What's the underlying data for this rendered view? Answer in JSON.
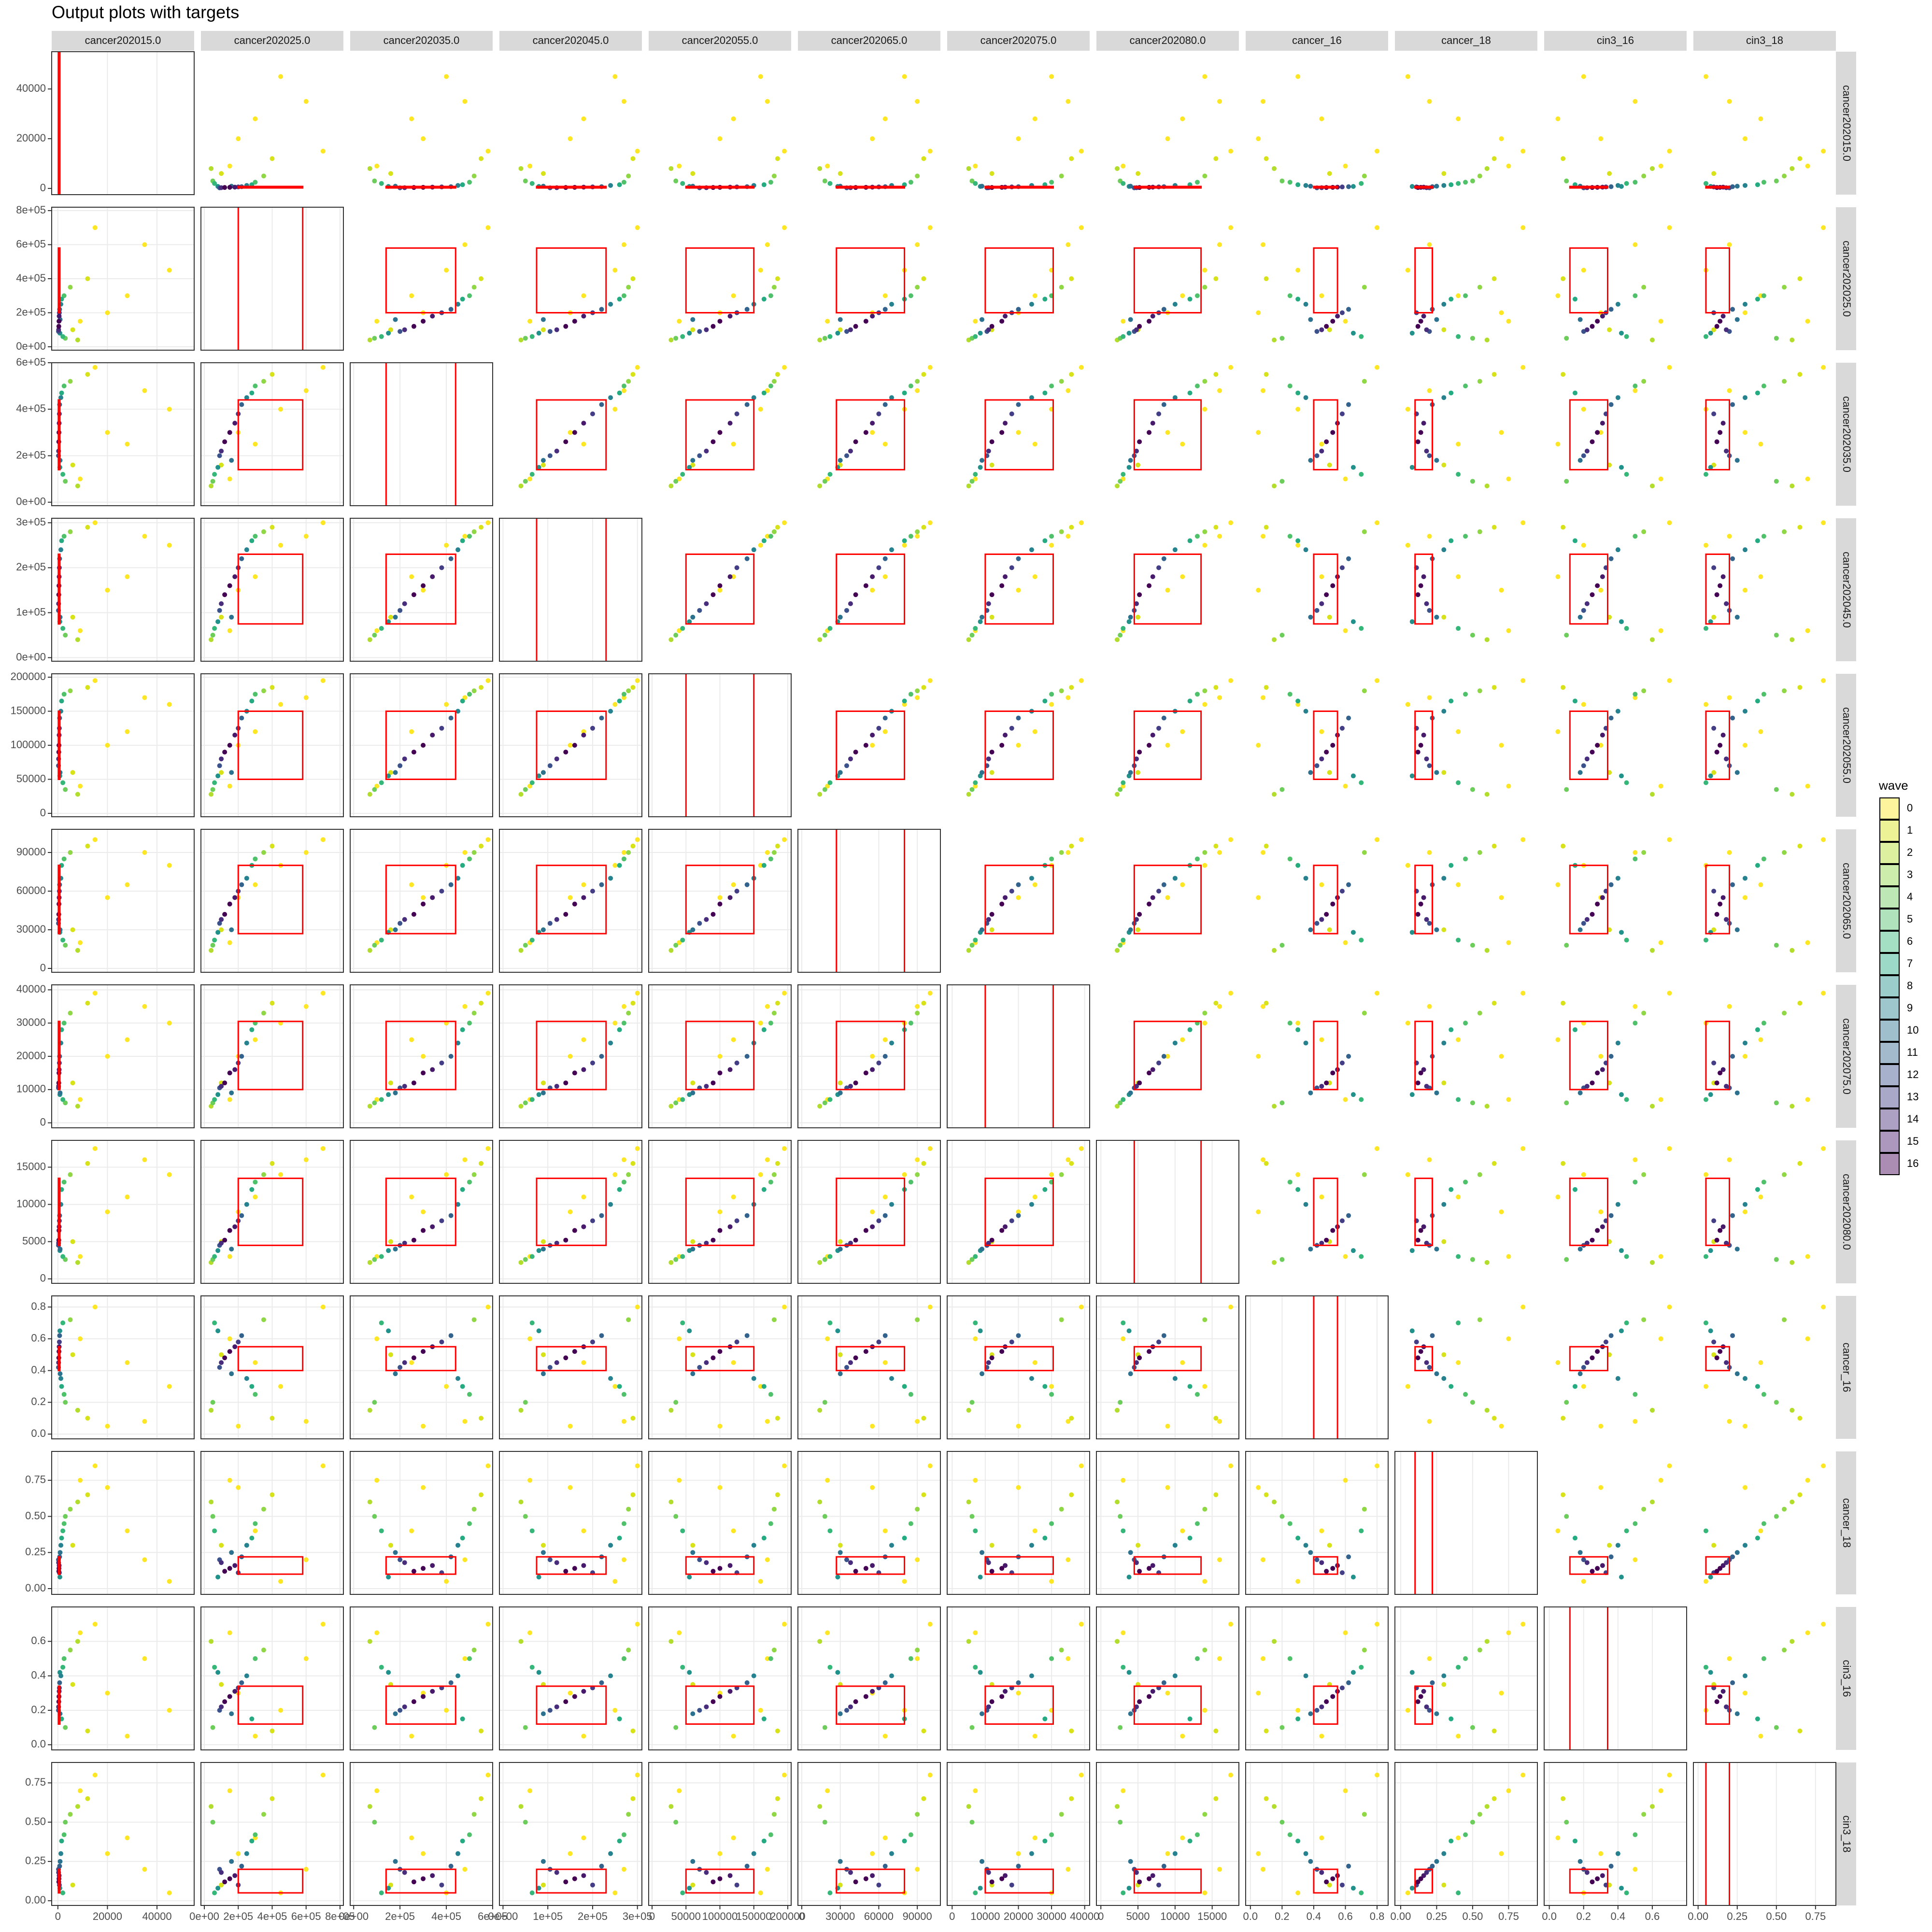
{
  "chart_data": {
    "type": "scatter-matrix",
    "title": "Output plots with targets",
    "variables": [
      {
        "name": "cancer202015.0",
        "lim": [
          -2500,
          55000
        ],
        "ticks": [
          0,
          20000,
          40000
        ],
        "target": [
          200,
          800
        ]
      },
      {
        "name": "cancer202025.0",
        "lim": [
          -20000,
          820000
        ],
        "ticks": [
          {
            "value": 0,
            "label": "0e+00"
          },
          {
            "value": 200000,
            "label": "2e+05"
          },
          {
            "value": 400000,
            "label": "4e+05"
          },
          {
            "value": 600000,
            "label": "6e+05"
          },
          {
            "value": 800000,
            "label": "8e+05"
          }
        ],
        "target": [
          200000,
          580000
        ]
      },
      {
        "name": "cancer202035.0",
        "lim": [
          -15000,
          600000
        ],
        "ticks": [
          {
            "value": 0,
            "label": "0e+00"
          },
          {
            "value": 200000,
            "label": "2e+05"
          },
          {
            "value": 400000,
            "label": "4e+05"
          },
          {
            "value": 600000,
            "label": "6e+05"
          }
        ],
        "target": [
          140000,
          440000
        ]
      },
      {
        "name": "cancer202045.0",
        "lim": [
          -8000,
          310000
        ],
        "ticks": [
          {
            "value": 0,
            "label": "0e+00"
          },
          {
            "value": 100000,
            "label": "1e+05"
          },
          {
            "value": 200000,
            "label": "2e+05"
          },
          {
            "value": 300000,
            "label": "3e+05"
          }
        ],
        "target": [
          75000,
          230000
        ]
      },
      {
        "name": "cancer202055.0",
        "lim": [
          -5000,
          205000
        ],
        "ticks": [
          0,
          50000,
          100000,
          150000,
          200000
        ],
        "target": [
          50000,
          150000
        ]
      },
      {
        "name": "cancer202065.0",
        "lim": [
          -3000,
          108000
        ],
        "ticks": [
          0,
          30000,
          60000,
          90000
        ],
        "target": [
          27000,
          80000
        ]
      },
      {
        "name": "cancer202075.0",
        "lim": [
          -1500,
          41500
        ],
        "ticks": [
          0,
          10000,
          20000,
          30000,
          40000
        ],
        "target": [
          10000,
          30500
        ]
      },
      {
        "name": "cancer202080.0",
        "lim": [
          -600,
          18600
        ],
        "ticks": [
          0,
          5000,
          10000,
          15000
        ],
        "target": [
          4500,
          13500
        ]
      },
      {
        "name": "cancer_16",
        "lim": [
          -0.03,
          0.87
        ],
        "ticks": [
          {
            "value": 0,
            "label": "0.0"
          },
          {
            "value": 0.2,
            "label": "0.2"
          },
          {
            "value": 0.4,
            "label": "0.4"
          },
          {
            "value": 0.6,
            "label": "0.6"
          },
          {
            "value": 0.8,
            "label": "0.8"
          }
        ],
        "target": [
          0.4,
          0.55
        ]
      },
      {
        "name": "cancer_18",
        "lim": [
          -0.04,
          0.95
        ],
        "ticks": [
          {
            "value": 0,
            "label": "0.00"
          },
          {
            "value": 0.25,
            "label": "0.25"
          },
          {
            "value": 0.5,
            "label": "0.50"
          },
          {
            "value": 0.75,
            "label": "0.75"
          }
        ],
        "target": [
          0.1,
          0.22
        ]
      },
      {
        "name": "cin3_16",
        "lim": [
          -0.03,
          0.8
        ],
        "ticks": [
          {
            "value": 0,
            "label": "0.0"
          },
          {
            "value": 0.2,
            "label": "0.2"
          },
          {
            "value": 0.4,
            "label": "0.4"
          },
          {
            "value": 0.6,
            "label": "0.6"
          }
        ],
        "target": [
          0.12,
          0.34
        ]
      },
      {
        "name": "cin3_18",
        "lim": [
          -0.03,
          0.88
        ],
        "ticks": [
          {
            "value": 0,
            "label": "0.00"
          },
          {
            "value": 0.25,
            "label": "0.25"
          },
          {
            "value": 0.5,
            "label": "0.50"
          },
          {
            "value": 0.75,
            "label": "0.75"
          }
        ],
        "target": [
          0.05,
          0.2
        ]
      }
    ],
    "legend": {
      "title": "wave",
      "levels": [
        0,
        1,
        2,
        3,
        4,
        5,
        6,
        7,
        8,
        9,
        10,
        11,
        12,
        13,
        14,
        15,
        16
      ],
      "colors": [
        "#FDE725",
        "#D8E219",
        "#B2DD2D",
        "#8FD744",
        "#6CCD5A",
        "#4FC16B",
        "#35B779",
        "#25AB82",
        "#21918C",
        "#26828E",
        "#2C728E",
        "#33638D",
        "#3B528B",
        "#433E85",
        "#472D7B",
        "#481A6C",
        "#440154"
      ]
    },
    "runs": [
      {
        "wave": 0,
        "values": [
          20000,
          200000,
          300000,
          150000,
          100000,
          55000,
          20000,
          9000,
          0.05,
          0.7,
          0.3,
          0.3
        ]
      },
      {
        "wave": 0,
        "values": [
          35000,
          600000,
          480000,
          270000,
          170000,
          90000,
          35000,
          16000,
          0.08,
          0.2,
          0.5,
          0.2
        ]
      },
      {
        "wave": 0,
        "values": [
          9000,
          150000,
          100000,
          60000,
          40000,
          20000,
          7000,
          3000,
          0.6,
          0.75,
          0.65,
          0.7
        ]
      },
      {
        "wave": 0,
        "values": [
          45000,
          450000,
          400000,
          250000,
          160000,
          80000,
          30000,
          14000,
          0.3,
          0.05,
          0.2,
          0.05
        ]
      },
      {
        "wave": 0,
        "values": [
          15000,
          700000,
          580000,
          300000,
          195000,
          100000,
          39000,
          17500,
          0.8,
          0.85,
          0.7,
          0.8
        ]
      },
      {
        "wave": 0,
        "values": [
          28000,
          300000,
          250000,
          180000,
          120000,
          65000,
          25000,
          11000,
          0.45,
          0.4,
          0.05,
          0.4
        ]
      },
      {
        "wave": 1,
        "values": [
          12000,
          400000,
          550000,
          290000,
          185000,
          95000,
          36000,
          15500,
          0.1,
          0.65,
          0.08,
          0.65
        ]
      },
      {
        "wave": 1,
        "values": [
          6000,
          100000,
          160000,
          90000,
          60000,
          30000,
          12000,
          5000,
          0.5,
          0.3,
          0.35,
          0.1
        ]
      },
      {
        "wave": 2,
        "values": [
          8000,
          40000,
          70000,
          40000,
          28000,
          14000,
          5000,
          2200,
          0.15,
          0.6,
          0.6,
          0.6
        ]
      },
      {
        "wave": 3,
        "values": [
          5000,
          350000,
          520000,
          280000,
          180000,
          90000,
          33000,
          14000,
          0.72,
          0.55,
          0.55,
          0.55
        ]
      },
      {
        "wave": 4,
        "values": [
          3000,
          50000,
          90000,
          50000,
          35000,
          18000,
          6000,
          2600,
          0.2,
          0.5,
          0.1,
          0.5
        ]
      },
      {
        "wave": 5,
        "values": [
          2500,
          300000,
          500000,
          270000,
          175000,
          85000,
          30000,
          13000,
          0.25,
          0.45,
          0.5,
          0.42
        ]
      },
      {
        "wave": 6,
        "values": [
          2000,
          60000,
          120000,
          65000,
          45000,
          22000,
          7000,
          3000,
          0.7,
          0.4,
          0.45,
          0.05
        ]
      },
      {
        "wave": 7,
        "values": [
          1500,
          280000,
          470000,
          260000,
          165000,
          80000,
          28000,
          12000,
          0.3,
          0.35,
          0.15,
          0.38
        ]
      },
      {
        "wave": 8,
        "values": [
          800,
          80000,
          150000,
          80000,
          55000,
          28000,
          8500,
          3800,
          0.65,
          0.08,
          0.42,
          0.08
        ]
      },
      {
        "wave": 9,
        "values": [
          1200,
          250000,
          450000,
          240000,
          150000,
          70000,
          24000,
          10000,
          0.35,
          0.3,
          0.4,
          0.3
        ]
      },
      {
        "wave": 10,
        "values": [
          900,
          160000,
          180000,
          90000,
          60000,
          30000,
          9000,
          4000,
          0.38,
          0.25,
          0.18,
          0.25
        ]
      },
      {
        "wave": 11,
        "values": [
          700,
          220000,
          420000,
          220000,
          140000,
          65000,
          20000,
          8500,
          0.62,
          0.22,
          0.36,
          0.22
        ]
      },
      {
        "wave": 12,
        "values": [
          250,
          90000,
          200000,
          105000,
          70000,
          35000,
          10500,
          4500,
          0.42,
          0.2,
          0.2,
          0.2
        ]
      },
      {
        "wave": 13,
        "values": [
          600,
          200000,
          380000,
          200000,
          125000,
          60000,
          18000,
          7800,
          0.58,
          0.11,
          0.33,
          0.1
        ]
      },
      {
        "wave": 14,
        "values": [
          300,
          100000,
          220000,
          120000,
          80000,
          38000,
          11000,
          4800,
          0.45,
          0.18,
          0.22,
          0.18
        ]
      },
      {
        "wave": 15,
        "values": [
          520,
          180000,
          340000,
          180000,
          115000,
          55000,
          16000,
          7000,
          0.55,
          0.16,
          0.31,
          0.16
        ]
      },
      {
        "wave": 16,
        "values": [
          380,
          120000,
          260000,
          140000,
          90000,
          42000,
          12000,
          5200,
          0.48,
          0.12,
          0.25,
          0.12
        ]
      },
      {
        "wave": 16,
        "values": [
          450,
          150000,
          300000,
          160000,
          100000,
          50000,
          15000,
          6500,
          0.52,
          0.14,
          0.28,
          0.14
        ]
      }
    ]
  }
}
